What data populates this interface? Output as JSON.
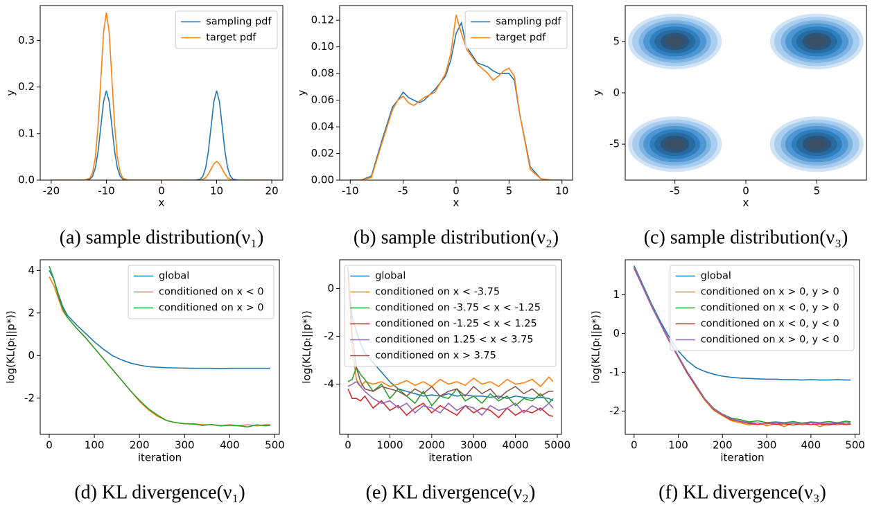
{
  "chart_data": [
    {
      "type": "line",
      "xlabel": "x",
      "ylabel": "y",
      "caption": "(a) sample distribution(ν₁)",
      "xlim": [
        -22,
        22
      ],
      "xticks": [
        -20,
        -10,
        0,
        10,
        20
      ],
      "ylim": [
        0,
        0.375
      ],
      "yticks": [
        {
          "value": 0,
          "label": "0.0"
        },
        0.1,
        0.2,
        0.3
      ],
      "legend": "upper right",
      "x": [
        -20,
        -14,
        -13,
        -12.5,
        -12,
        -11.5,
        -11,
        -10.5,
        -10,
        -9.5,
        -9,
        -8.5,
        -8,
        -7.5,
        -7,
        -6,
        6,
        7,
        7.5,
        8,
        8.5,
        9,
        9.5,
        10,
        10.5,
        11,
        11.5,
        12,
        12.5,
        13,
        14,
        20
      ],
      "series": [
        {
          "name": "sampling pdf",
          "color": "#1f77b4",
          "values": [
            0,
            0,
            0.002,
            0.008,
            0.026,
            0.062,
            0.116,
            0.169,
            0.192,
            0.169,
            0.116,
            0.062,
            0.026,
            0.008,
            0.002,
            0,
            0,
            0.002,
            0.008,
            0.026,
            0.062,
            0.116,
            0.169,
            0.192,
            0.169,
            0.116,
            0.062,
            0.026,
            0.008,
            0.002,
            0,
            0
          ]
        },
        {
          "name": "target pdf",
          "color": "#ff7f0e",
          "values": [
            0,
            0,
            0.004,
            0.016,
            0.049,
            0.117,
            0.218,
            0.318,
            0.36,
            0.318,
            0.218,
            0.117,
            0.049,
            0.016,
            0.004,
            0,
            0,
            0,
            0.002,
            0.005,
            0.013,
            0.024,
            0.035,
            0.04,
            0.035,
            0.024,
            0.013,
            0.005,
            0.002,
            0,
            0,
            0
          ]
        }
      ]
    },
    {
      "type": "line",
      "xlabel": "x",
      "ylabel": "y",
      "caption": "(b) sample distribution(ν₂)",
      "xlim": [
        -11,
        11
      ],
      "xticks": [
        -10,
        -5,
        0,
        5,
        10
      ],
      "ylim": [
        0,
        0.131
      ],
      "yticks": [
        {
          "value": 0,
          "label": "0.00"
        },
        0.02,
        0.04,
        0.06,
        0.08,
        {
          "value": 0.1,
          "label": "0.10"
        },
        0.12
      ],
      "legend": "upper right",
      "x": [
        -10,
        -9,
        -8,
        -7,
        -6,
        -5.5,
        -5,
        -4.5,
        -4,
        -3.5,
        -3,
        -2,
        -1,
        -0.5,
        0,
        0.5,
        1,
        2,
        3,
        3.5,
        4,
        4.5,
        5,
        5.5,
        6,
        7,
        8,
        9,
        10
      ],
      "series": [
        {
          "name": "sampling pdf",
          "color": "#1f77b4",
          "values": [
            0,
            0,
            0.003,
            0.03,
            0.055,
            0.06,
            0.066,
            0.062,
            0.06,
            0.058,
            0.06,
            0.068,
            0.078,
            0.09,
            0.11,
            0.118,
            0.1,
            0.088,
            0.085,
            0.082,
            0.08,
            0.08,
            0.08,
            0.075,
            0.05,
            0.01,
            0.001,
            0,
            0
          ]
        },
        {
          "name": "target pdf",
          "color": "#ff7f0e",
          "values": [
            0,
            0,
            0.002,
            0.028,
            0.053,
            0.06,
            0.063,
            0.058,
            0.056,
            0.059,
            0.062,
            0.066,
            0.08,
            0.095,
            0.124,
            0.11,
            0.098,
            0.087,
            0.08,
            0.075,
            0.078,
            0.082,
            0.084,
            0.078,
            0.05,
            0.008,
            0.001,
            0,
            0
          ]
        }
      ]
    },
    {
      "type": "kde",
      "xlabel": "x",
      "ylabel": "y",
      "caption": "(c) sample distribution(ν₃)",
      "xlim": [
        -8.5,
        8.5
      ],
      "xticks": [
        -5,
        0,
        5
      ],
      "ylim": [
        -8.5,
        8.5
      ],
      "yticks": [
        -5,
        0,
        5
      ],
      "color": "#1f77b4",
      "x": [
        -5,
        5,
        -5,
        5
      ],
      "y": [
        5,
        5,
        -5,
        -5
      ]
    },
    {
      "type": "line",
      "xlabel": "iteration",
      "ylabel": "log(KL(pₜ||p*))",
      "caption": "(d) KL divergence(ν₁)",
      "xlim": [
        -20,
        510
      ],
      "xticks": [
        0,
        100,
        200,
        300,
        400,
        500
      ],
      "ylim": [
        -3.7,
        4.5
      ],
      "yticks": [
        -2,
        0,
        2,
        4
      ],
      "legend": "upper right",
      "x": [
        0,
        10,
        20,
        30,
        40,
        60,
        80,
        100,
        120,
        140,
        160,
        180,
        200,
        220,
        240,
        260,
        280,
        300,
        320,
        340,
        360,
        380,
        400,
        420,
        440,
        460,
        480,
        490
      ],
      "series": [
        {
          "name": "global",
          "color": "#1f77b4",
          "values": [
            4.0,
            3.6,
            2.9,
            2.3,
            1.9,
            1.45,
            1.05,
            0.65,
            0.3,
            0.0,
            -0.2,
            -0.35,
            -0.45,
            -0.52,
            -0.55,
            -0.57,
            -0.58,
            -0.59,
            -0.6,
            -0.6,
            -0.6,
            -0.61,
            -0.6,
            -0.6,
            -0.6,
            -0.6,
            -0.6,
            -0.6
          ]
        },
        {
          "name": "conditioned on x < 0",
          "color": "#ff7f0e",
          "values": [
            3.7,
            3.3,
            2.7,
            2.1,
            1.8,
            1.3,
            0.85,
            0.35,
            -0.15,
            -0.65,
            -1.15,
            -1.65,
            -2.15,
            -2.55,
            -2.85,
            -3.05,
            -3.15,
            -3.2,
            -3.2,
            -3.25,
            -3.25,
            -3.3,
            -3.25,
            -3.3,
            -3.25,
            -3.3,
            -3.25,
            -3.25
          ]
        },
        {
          "name": "conditioned on x > 0",
          "color": "#2ca02c",
          "values": [
            4.2,
            3.6,
            2.8,
            2.2,
            1.8,
            1.3,
            0.85,
            0.35,
            -0.15,
            -0.65,
            -1.15,
            -1.65,
            -2.1,
            -2.5,
            -2.8,
            -3.05,
            -3.15,
            -3.2,
            -3.22,
            -3.28,
            -3.24,
            -3.3,
            -3.27,
            -3.3,
            -3.35,
            -3.25,
            -3.3,
            -3.27
          ]
        }
      ]
    },
    {
      "type": "line",
      "xlabel": "iteration",
      "ylabel": "log(KL(pₜ||p*))",
      "caption": "(e) KL divergence(ν₂)",
      "xlim": [
        -200,
        5100
      ],
      "xticks": [
        0,
        1000,
        2000,
        3000,
        4000,
        5000
      ],
      "ylim": [
        -6.1,
        1.2
      ],
      "yticks": [
        -4,
        -2,
        0
      ],
      "legend": "upper right",
      "x": [
        0,
        100,
        200,
        300,
        400,
        600,
        800,
        1000,
        1200,
        1400,
        1600,
        1800,
        2000,
        2200,
        2400,
        2600,
        2800,
        3000,
        3200,
        3400,
        3600,
        3800,
        4000,
        4200,
        4400,
        4600,
        4800,
        4900
      ],
      "series": [
        {
          "name": "global",
          "color": "#1f77b4",
          "values": [
            0.5,
            -1.2,
            -1.8,
            -2.3,
            -2.7,
            -3.1,
            -3.5,
            -3.9,
            -4.2,
            -4.3,
            -4.4,
            -4.5,
            -4.45,
            -4.5,
            -4.4,
            -4.5,
            -4.45,
            -4.5,
            -4.5,
            -4.55,
            -4.5,
            -4.6,
            -4.5,
            -4.55,
            -4.6,
            -4.55,
            -4.6,
            -4.7
          ]
        },
        {
          "name": "conditioned on x < -3.75",
          "color": "#ff7f0e",
          "values": [
            0.8,
            -2.5,
            -3.8,
            -4.1,
            -3.9,
            -4.0,
            -3.9,
            -4.1,
            -4.0,
            -3.85,
            -4.05,
            -3.9,
            -4.1,
            -3.8,
            -4.0,
            -3.9,
            -4.05,
            -3.75,
            -4.0,
            -3.9,
            -4.1,
            -3.8,
            -4.0,
            -3.95,
            -3.8,
            -4.1,
            -3.7,
            -3.9
          ]
        },
        {
          "name": "conditioned on -3.75 < x < -1.25",
          "color": "#2ca02c",
          "values": [
            -3.9,
            -3.8,
            -3.3,
            -3.6,
            -3.8,
            -4.3,
            -4.0,
            -4.6,
            -4.2,
            -4.5,
            -4.8,
            -4.3,
            -4.9,
            -4.5,
            -4.6,
            -4.2,
            -4.7,
            -4.5,
            -4.8,
            -4.4,
            -4.7,
            -4.5,
            -4.9,
            -4.6,
            -4.7,
            -4.4,
            -4.8,
            -4.6
          ]
        },
        {
          "name": "conditioned on -1.25 < x < 1.25",
          "color": "#d62728",
          "values": [
            -4.2,
            -4.6,
            -4.6,
            -4.7,
            -4.5,
            -5.0,
            -4.7,
            -5.1,
            -4.9,
            -5.3,
            -5.0,
            -4.8,
            -5.2,
            -4.9,
            -5.1,
            -5.3,
            -4.9,
            -5.2,
            -5.0,
            -5.1,
            -5.4,
            -5.0,
            -5.3,
            -5.1,
            -5.2,
            -5.0,
            -5.3,
            -5.35
          ]
        },
        {
          "name": "conditioned on 1.25 < x < 3.75",
          "color": "#9467bd",
          "values": [
            -4.1,
            -4.0,
            -3.9,
            -4.1,
            -4.3,
            -4.6,
            -4.8,
            -4.7,
            -5.0,
            -4.8,
            -5.2,
            -4.9,
            -5.0,
            -5.2,
            -4.8,
            -5.1,
            -4.9,
            -5.0,
            -5.3,
            -4.9,
            -5.1,
            -5.0,
            -4.8,
            -5.2,
            -4.9,
            -5.1,
            -4.8,
            -5.0
          ]
        },
        {
          "name": "conditioned on x > 3.75",
          "color": "#8c564b",
          "values": [
            0.9,
            -2.0,
            -3.3,
            -3.9,
            -4.2,
            -4.3,
            -4.1,
            -4.2,
            -4.3,
            -4.5,
            -4.2,
            -4.4,
            -4.1,
            -4.5,
            -4.3,
            -4.2,
            -4.5,
            -4.1,
            -4.4,
            -4.2,
            -4.6,
            -4.3,
            -4.1,
            -4.4,
            -4.2,
            -4.5,
            -4.3,
            -4.3
          ]
        }
      ]
    },
    {
      "type": "line",
      "xlabel": "iteration",
      "ylabel": "log(KL(pₜ||p*))",
      "caption": "(f) KL divergence(ν₃)",
      "xlim": [
        -20,
        510
      ],
      "xticks": [
        0,
        100,
        200,
        300,
        400,
        500
      ],
      "ylim": [
        -2.6,
        1.9
      ],
      "yticks": [
        -2,
        -1,
        0,
        1
      ],
      "legend": "upper right",
      "x": [
        0,
        10,
        20,
        30,
        40,
        60,
        80,
        100,
        120,
        140,
        160,
        180,
        200,
        220,
        240,
        260,
        280,
        300,
        320,
        340,
        360,
        380,
        400,
        420,
        440,
        460,
        480,
        490
      ],
      "series": [
        {
          "name": "global",
          "color": "#1f77b4",
          "values": [
            1.75,
            1.5,
            1.25,
            1.0,
            0.75,
            0.3,
            -0.1,
            -0.45,
            -0.7,
            -0.88,
            -0.98,
            -1.05,
            -1.1,
            -1.13,
            -1.15,
            -1.16,
            -1.17,
            -1.18,
            -1.18,
            -1.19,
            -1.19,
            -1.2,
            -1.19,
            -1.2,
            -1.2,
            -1.19,
            -1.2,
            -1.2
          ]
        },
        {
          "name": "conditioned on x > 0, y > 0",
          "color": "#ff7f0e",
          "values": [
            1.7,
            1.45,
            1.2,
            0.95,
            0.7,
            0.25,
            -0.2,
            -0.6,
            -1.0,
            -1.38,
            -1.72,
            -1.98,
            -2.12,
            -2.25,
            -2.3,
            -2.36,
            -2.3,
            -2.38,
            -2.33,
            -2.4,
            -2.3,
            -2.36,
            -2.3,
            -2.4,
            -2.33,
            -2.36,
            -2.3,
            -2.34
          ]
        },
        {
          "name": "conditioned on x < 0, y > 0",
          "color": "#2ca02c",
          "values": [
            1.72,
            1.46,
            1.21,
            0.96,
            0.71,
            0.26,
            -0.18,
            -0.58,
            -0.98,
            -1.33,
            -1.68,
            -1.93,
            -2.08,
            -2.18,
            -2.22,
            -2.28,
            -2.25,
            -2.3,
            -2.28,
            -2.3,
            -2.27,
            -2.31,
            -2.28,
            -2.3,
            -2.27,
            -2.3,
            -2.26,
            -2.28
          ]
        },
        {
          "name": "conditioned on x < 0, y < 0",
          "color": "#d62728",
          "values": [
            1.68,
            1.44,
            1.19,
            0.94,
            0.69,
            0.24,
            -0.21,
            -0.61,
            -1.02,
            -1.36,
            -1.7,
            -1.95,
            -2.1,
            -2.22,
            -2.27,
            -2.32,
            -2.35,
            -2.31,
            -2.34,
            -2.33,
            -2.36,
            -2.32,
            -2.35,
            -2.33,
            -2.36,
            -2.32,
            -2.35,
            -2.33
          ]
        },
        {
          "name": "conditioned on x > 0, y < 0",
          "color": "#9467bd",
          "values": [
            1.71,
            1.46,
            1.2,
            0.95,
            0.7,
            0.25,
            -0.19,
            -0.59,
            -0.99,
            -1.34,
            -1.69,
            -1.94,
            -2.09,
            -2.2,
            -2.26,
            -2.3,
            -2.31,
            -2.33,
            -2.3,
            -2.32,
            -2.31,
            -2.33,
            -2.3,
            -2.31,
            -2.32,
            -2.3,
            -2.31,
            -2.29
          ]
        }
      ]
    }
  ]
}
